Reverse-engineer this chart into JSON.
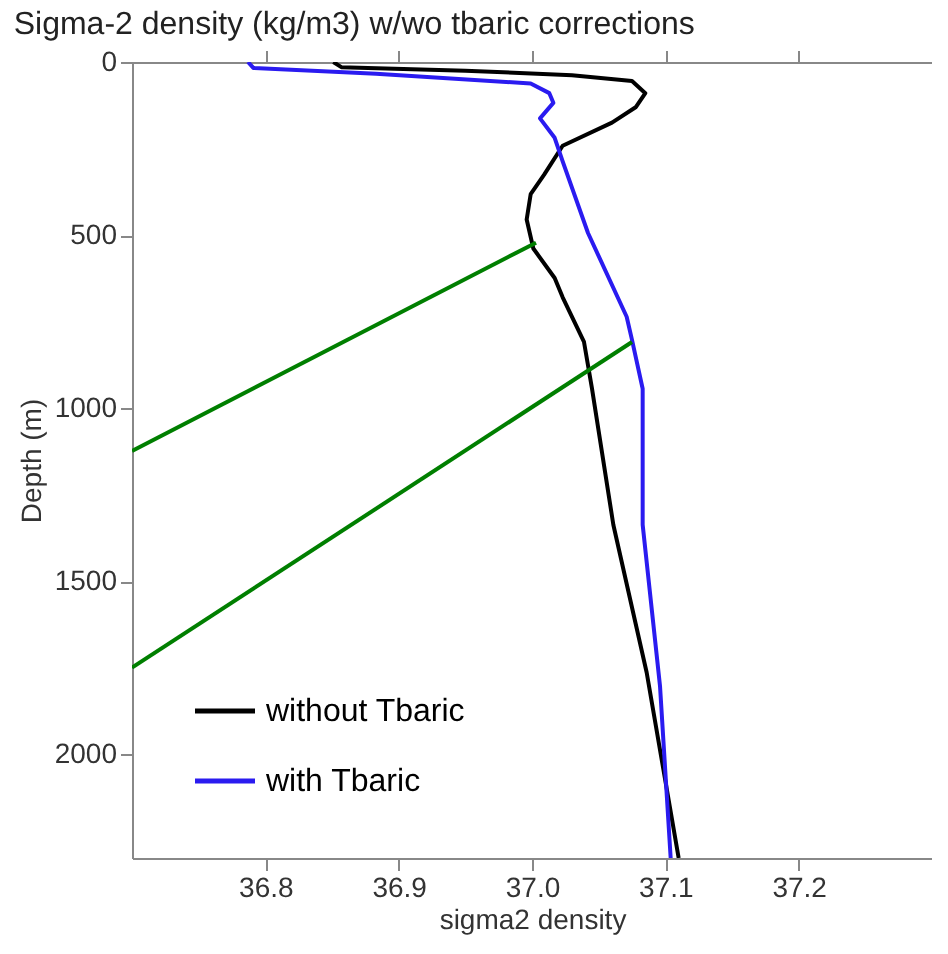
{
  "chart_data": {
    "type": "line",
    "title": "Sigma-2 density (kg/m3) w/wo tbaric corrections",
    "xlabel": "sigma2 density",
    "ylabel": "Depth (m)",
    "xlim": [
      36.7,
      37.3
    ],
    "xticks": [
      36.8,
      36.9,
      {
        "value": 37.0,
        "label": "37.0"
      },
      37.1,
      37.2
    ],
    "ylim": [
      2300,
      0
    ],
    "yticks": [
      0,
      500,
      1000,
      1500,
      2000
    ],
    "grid": false,
    "legend": "bottom left",
    "series": [
      {
        "name": "without Tbaric",
        "color": "#000000",
        "x": [
          36.851,
          36.857,
          36.95,
          37.03,
          37.075,
          37.085,
          37.078,
          37.06,
          37.023,
          37.009,
          36.999,
          36.996,
          37.001,
          37.017,
          37.023,
          37.039,
          37.045,
          37.061,
          37.086,
          37.11
        ],
        "values": [
          0,
          15,
          25,
          38,
          55,
          90,
          130,
          175,
          242,
          326,
          382,
          455,
          539,
          624,
          680,
          809,
          944,
          1337,
          1764,
          2300
        ]
      },
      {
        "name": "with Tbaric",
        "color": "#2a1bf0",
        "x": [
          36.787,
          36.791,
          36.883,
          36.999,
          37.013,
          37.016,
          37.006,
          37.017,
          37.023,
          37.042,
          37.071,
          37.075,
          37.083,
          37.083,
          37.096,
          37.104
        ],
        "values": [
          0,
          17,
          34,
          62,
          90,
          118,
          163,
          219,
          287,
          494,
          736,
          803,
          944,
          1337,
          1803,
          2300
        ]
      },
      {
        "color": "#007f00",
        "x": [
          37.003,
          36.7
        ],
        "values": [
          522,
          1124
        ]
      },
      {
        "color": "#007f00",
        "x": [
          37.075,
          36.7
        ],
        "values": [
          809,
          1750
        ]
      }
    ]
  }
}
